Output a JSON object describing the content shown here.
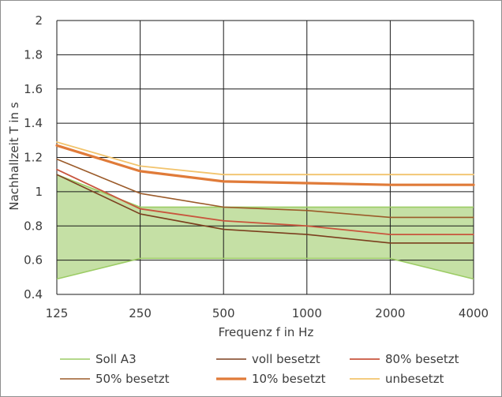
{
  "chart_data": {
    "type": "line",
    "title": "",
    "xlabel": "Frequenz f in Hz",
    "ylabel": "Nachhallzeit T in s",
    "x_scale": "log",
    "x": [
      125,
      250,
      500,
      1000,
      2000,
      4000
    ],
    "x_tick_labels": [
      "125",
      "250",
      "500",
      "1000",
      "2000",
      "4000"
    ],
    "ylim": [
      0.4,
      2
    ],
    "y_ticks": [
      0.4,
      0.6,
      0.8,
      1,
      1.2,
      1.4,
      1.6,
      1.8,
      2
    ],
    "y_tick_labels": [
      "0.4",
      "0.6",
      "0.8",
      "1",
      "1.2",
      "1.4",
      "1.6",
      "1.8",
      "2"
    ],
    "grid": true,
    "legend_position": "bottom",
    "soll_band": {
      "name": "Soll A3",
      "color": "#9ccc65",
      "fill": "#c5e0a5",
      "upper": [
        1.1,
        0.91,
        0.91,
        0.91,
        0.91,
        0.91
      ],
      "lower": [
        0.49,
        0.61,
        0.61,
        0.61,
        0.61,
        0.49
      ]
    },
    "series": [
      {
        "name": "voll besetzt",
        "color": "#7b3f1e",
        "width": 1.6,
        "values": [
          1.1,
          0.87,
          0.78,
          0.75,
          0.7,
          0.7
        ]
      },
      {
        "name": "80% besetzt",
        "color": "#c8553d",
        "width": 1.8,
        "values": [
          1.13,
          0.9,
          0.83,
          0.8,
          0.75,
          0.75
        ]
      },
      {
        "name": "50% besetzt",
        "color": "#9b5b2a",
        "width": 1.6,
        "values": [
          1.19,
          0.99,
          0.91,
          0.89,
          0.85,
          0.85
        ]
      },
      {
        "name": "10% besetzt",
        "color": "#e07b39",
        "width": 3.2,
        "values": [
          1.27,
          1.12,
          1.06,
          1.05,
          1.04,
          1.04
        ]
      },
      {
        "name": "unbesetzt",
        "color": "#f2c46d",
        "width": 1.8,
        "values": [
          1.29,
          1.15,
          1.1,
          1.1,
          1.1,
          1.1
        ]
      }
    ],
    "legend": [
      {
        "label": "Soll A3",
        "color": "#9ccc65",
        "width": 1.6
      },
      {
        "label": "voll besetzt",
        "color": "#7b3f1e",
        "width": 1.6
      },
      {
        "label": "80% besetzt",
        "color": "#c8553d",
        "width": 1.8
      },
      {
        "label": "50% besetzt",
        "color": "#9b5b2a",
        "width": 1.6
      },
      {
        "label": "10% besetzt",
        "color": "#e07b39",
        "width": 3.2
      },
      {
        "label": "unbesetzt",
        "color": "#f2c46d",
        "width": 1.8
      }
    ]
  }
}
